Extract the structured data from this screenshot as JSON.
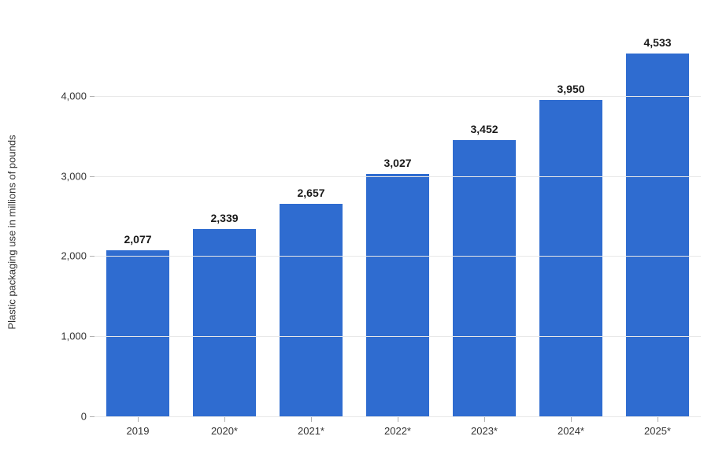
{
  "chart": {
    "type": "bar",
    "y_axis": {
      "label": "Plastic packaging use in millions of pounds",
      "min": 0,
      "max": 5000,
      "ticks": [
        0,
        1000,
        2000,
        3000,
        4000
      ],
      "tick_labels": [
        "0",
        "1,000",
        "2,000",
        "3,000",
        "4,000"
      ]
    },
    "categories": [
      "2019",
      "2020*",
      "2021*",
      "2022*",
      "2023*",
      "2024*",
      "2025*"
    ],
    "values": [
      2077,
      2339,
      2657,
      3027,
      3452,
      3950,
      4533
    ],
    "value_labels": [
      "2,077",
      "2,339",
      "2,657",
      "3,027",
      "3,452",
      "3,950",
      "4,533"
    ],
    "bar_color": "#2f6cd0",
    "grid_color": "#e8e8e8",
    "axis_color": "#b0b0b0",
    "background_color": "#ffffff",
    "label_color": "#1a1a1a",
    "tick_color": "#333333",
    "label_fontsize": 14,
    "tick_fontsize": 13,
    "axis_label_fontsize": 13,
    "bar_width_ratio": 0.72
  }
}
